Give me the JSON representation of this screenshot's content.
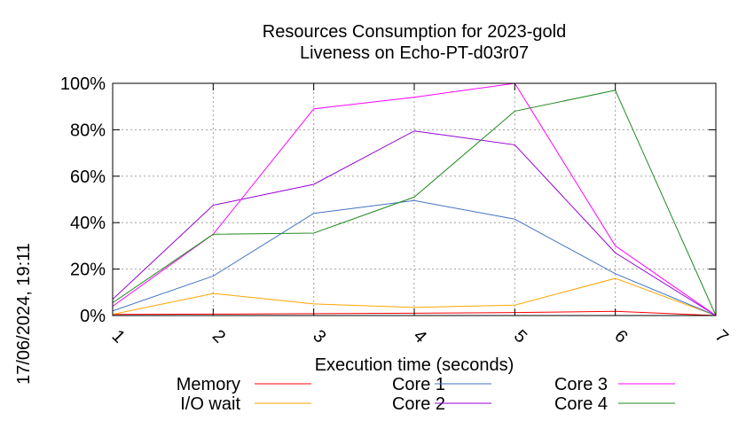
{
  "chart_data": {
    "type": "line",
    "title": "Resources Consumption for 2023-gold",
    "subtitle": "Liveness on Echo-PT-d03r07",
    "xlabel": "Execution time (seconds)",
    "ylabel": "",
    "side_label": "17/06/2024, 19:11",
    "x": [
      1,
      2,
      3,
      4,
      5,
      6,
      7
    ],
    "x_ticks": [
      "1",
      "2",
      "3",
      "4",
      "5",
      "6",
      "7"
    ],
    "xlim": [
      1,
      7
    ],
    "ylim": [
      0,
      100
    ],
    "y_ticks": [
      {
        "value": 0,
        "label": "0%"
      },
      {
        "value": 20,
        "label": "20%"
      },
      {
        "value": 40,
        "label": "40%"
      },
      {
        "value": 60,
        "label": "60%"
      },
      {
        "value": 80,
        "label": "80%"
      },
      {
        "value": 100,
        "label": "100%"
      }
    ],
    "grid": true,
    "legend_position": "bottom",
    "series": [
      {
        "name": "Memory",
        "color": "#ff0000",
        "values": [
          0.5,
          0.6,
          0.8,
          1.0,
          1.3,
          1.8,
          0
        ]
      },
      {
        "name": "I/O wait",
        "color": "#ffa500",
        "values": [
          0.5,
          9.5,
          5,
          3.5,
          4.5,
          16,
          0
        ]
      },
      {
        "name": "Core 1",
        "color": "#4472c4",
        "values": [
          2,
          17,
          44,
          49.5,
          41.5,
          18,
          0
        ]
      },
      {
        "name": "Core 2",
        "color": "#9400d3",
        "values": [
          7,
          47.5,
          56.5,
          79.5,
          73.5,
          27,
          0
        ]
      },
      {
        "name": "Core 3",
        "color": "#ff00ff",
        "values": [
          4,
          35,
          89,
          94,
          100,
          30,
          0
        ]
      },
      {
        "name": "Core 4",
        "color": "#228b22",
        "values": [
          5.5,
          35,
          35.5,
          51,
          88,
          97,
          0
        ]
      }
    ]
  }
}
